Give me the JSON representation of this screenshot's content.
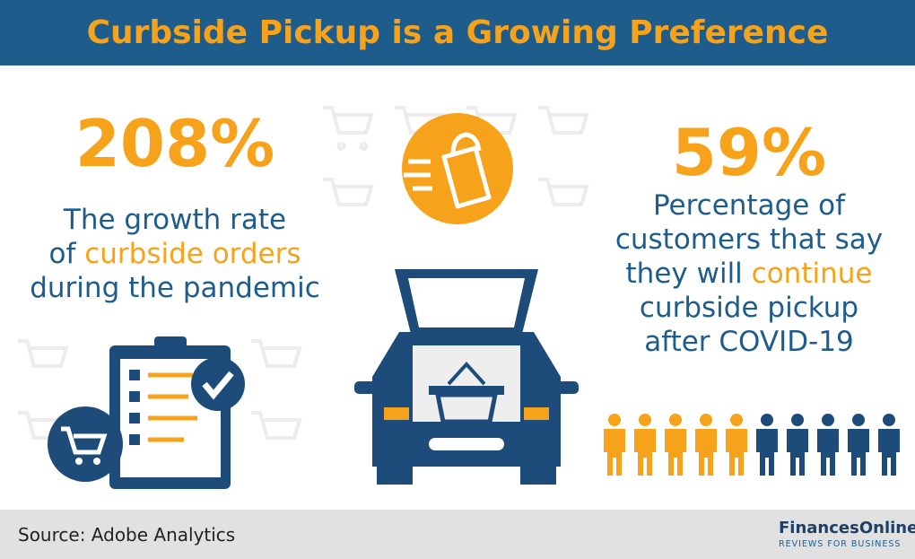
{
  "header": {
    "title": "Curbside Pickup is a Growing Preference"
  },
  "left": {
    "stat": "208%",
    "lines": [
      [
        "The growth rate"
      ],
      [
        "of ",
        "curbside orders"
      ],
      [
        "during the pandemic"
      ]
    ]
  },
  "right": {
    "stat": "59%",
    "lines": [
      [
        "Percentage of"
      ],
      [
        "customers that say"
      ],
      [
        "they will ",
        "continue"
      ],
      [
        "curbside pickup"
      ],
      [
        "after COVID-19"
      ]
    ]
  },
  "footer": {
    "source": "Source: Adobe Analytics",
    "logo": "FinancesOnline",
    "tagline": "REVIEWS FOR BUSINESS"
  }
}
